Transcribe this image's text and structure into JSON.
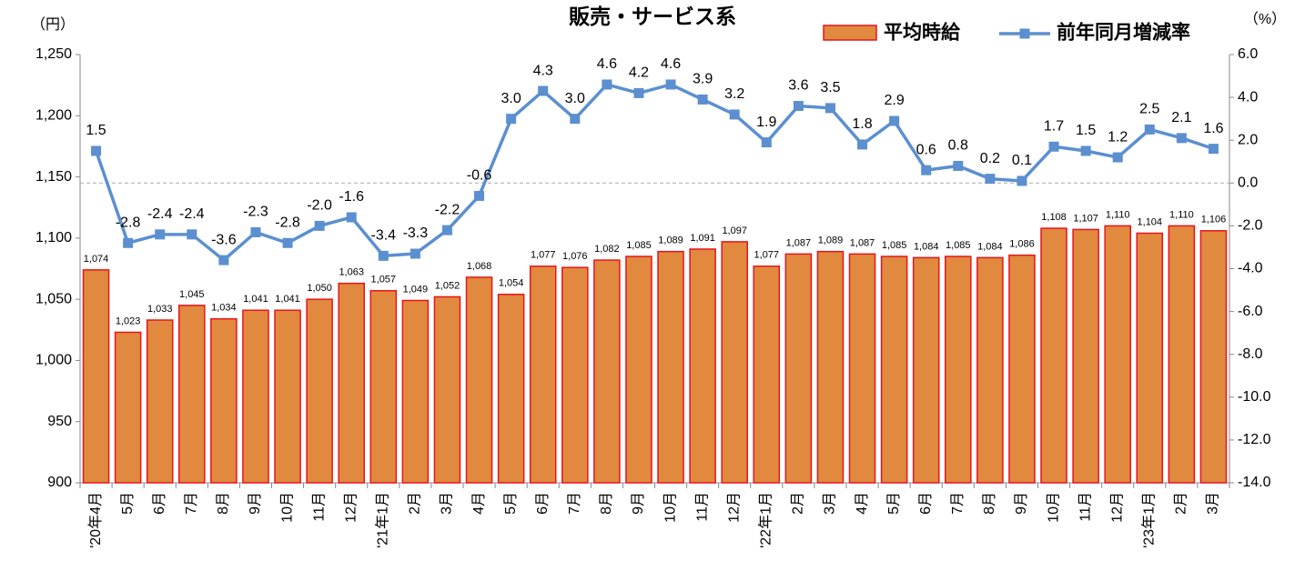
{
  "chart_data": {
    "type": "bar_line",
    "title": "販売・サービス系",
    "y_label": "（円）",
    "y2_label": "（%）",
    "categories": [
      "'20年4月",
      "5月",
      "6月",
      "7月",
      "8月",
      "9月",
      "10月",
      "11月",
      "12月",
      "'21年1月",
      "2月",
      "3月",
      "4月",
      "5月",
      "6月",
      "7月",
      "8月",
      "9月",
      "10月",
      "11月",
      "12月",
      "'22年1月",
      "2月",
      "3月",
      "4月",
      "5月",
      "6月",
      "7月",
      "8月",
      "9月",
      "10月",
      "11月",
      "12月",
      "'23年1月",
      "2月",
      "3月"
    ],
    "series": [
      {
        "name": "平均時給",
        "type": "bar",
        "color": "#e0893f",
        "edge_color": "#e8141c",
        "values": [
          1074,
          1023,
          1033,
          1045,
          1034,
          1041,
          1041,
          1050,
          1063,
          1057,
          1049,
          1052,
          1068,
          1054,
          1077,
          1076,
          1082,
          1085,
          1089,
          1091,
          1097,
          1077,
          1087,
          1089,
          1087,
          1085,
          1084,
          1085,
          1084,
          1086,
          1108,
          1107,
          1110,
          1104,
          1110,
          1106
        ],
        "value_labels": [
          "1,074",
          "1,023",
          "1,033",
          "1,045",
          "1,034",
          "1,041",
          "1,041",
          "1,050",
          "1,063",
          "1,057",
          "1,049",
          "1,052",
          "1,068",
          "1,054",
          "1,077",
          "1,076",
          "1,082",
          "1,085",
          "1,089",
          "1,091",
          "1,097",
          "1,077",
          "1,087",
          "1,089",
          "1,087",
          "1,085",
          "1,084",
          "1,085",
          "1,084",
          "1,086",
          "1,108",
          "1,107",
          "1,110",
          "1,104",
          "1,110",
          "1,106"
        ]
      },
      {
        "name": "前年同月増減率",
        "type": "line",
        "axis": "y2",
        "color": "#5b8fd0",
        "values": [
          1.5,
          -2.8,
          -2.4,
          -2.4,
          -3.6,
          -2.3,
          -2.8,
          -2.0,
          -1.6,
          -3.4,
          -3.3,
          -2.2,
          -0.6,
          3.0,
          4.3,
          3.0,
          4.6,
          4.2,
          4.6,
          3.9,
          3.2,
          1.9,
          3.6,
          3.5,
          1.8,
          2.9,
          0.6,
          0.8,
          0.2,
          0.1,
          1.7,
          1.5,
          1.2,
          2.5,
          2.1,
          1.6
        ],
        "value_labels": [
          "1.5",
          "-2.8",
          "-2.4",
          "-2.4",
          "-3.6",
          "-2.3",
          "-2.8",
          "-2.0",
          "-1.6",
          "-3.4",
          "-3.3",
          "-2.2",
          "-0.6",
          "3.0",
          "4.3",
          "3.0",
          "4.6",
          "4.2",
          "4.6",
          "3.9",
          "3.2",
          "1.9",
          "3.6",
          "3.5",
          "1.8",
          "2.9",
          "0.6",
          "0.8",
          "0.2",
          "0.1",
          "1.7",
          "1.5",
          "1.2",
          "2.5",
          "2.1",
          "1.6"
        ]
      }
    ],
    "ylim": [
      900,
      1250
    ],
    "yticks": [
      900,
      950,
      {
        "value": 1000,
        "label": "1,000"
      },
      {
        "value": 1050,
        "label": "1,050"
      },
      {
        "value": 1100,
        "label": "1,100"
      },
      {
        "value": 1150,
        "label": "1,150"
      },
      {
        "value": 1200,
        "label": "1,200"
      },
      {
        "value": 1250,
        "label": "1,250"
      }
    ],
    "y2lim": [
      -14,
      6
    ],
    "y2ticks": [
      {
        "value": -14,
        "label": "-14.0"
      },
      {
        "value": -12,
        "label": "-12.0"
      },
      {
        "value": -10,
        "label": "-10.0"
      },
      {
        "value": -8,
        "label": "-8.0"
      },
      {
        "value": -6,
        "label": "-6.0"
      },
      {
        "value": -4,
        "label": "-4.0"
      },
      {
        "value": -2,
        "label": "-2.0"
      },
      {
        "value": 0,
        "label": "0.0"
      },
      {
        "value": 2,
        "label": "2.0"
      },
      {
        "value": 4,
        "label": "4.0"
      },
      {
        "value": 6,
        "label": "6.0"
      }
    ],
    "y2_zero_line": true,
    "legend": "top-right"
  }
}
